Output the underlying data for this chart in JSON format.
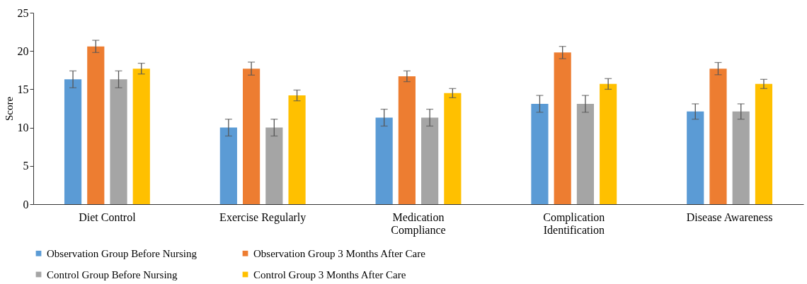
{
  "chart_data": {
    "type": "bar",
    "ylabel": "Score",
    "categories": [
      "Diet Control",
      "Exercise Regularly",
      "Medication Compliance",
      "Complication Identification",
      "Disease Awareness"
    ],
    "series": [
      {
        "name": "Observation Group Before Nursing",
        "color": "#5b9bd5",
        "values": [
          16.3,
          10.0,
          11.3,
          13.1,
          12.1
        ],
        "errors": [
          1.1,
          1.1,
          1.1,
          1.1,
          1.0
        ]
      },
      {
        "name": "Observation Group 3 Months After Care",
        "color": "#ed7d31",
        "values": [
          20.6,
          17.7,
          16.7,
          19.8,
          17.7
        ],
        "errors": [
          0.8,
          0.85,
          0.7,
          0.8,
          0.8
        ]
      },
      {
        "name": "Control Group Before Nursing",
        "color": "#a5a5a5",
        "values": [
          16.3,
          10.0,
          11.3,
          13.1,
          12.1
        ],
        "errors": [
          1.1,
          1.1,
          1.1,
          1.1,
          1.0
        ]
      },
      {
        "name": "Control Group 3 Months After Care",
        "color": "#ffc000",
        "values": [
          17.7,
          14.2,
          14.5,
          15.7,
          15.7
        ],
        "errors": [
          0.7,
          0.7,
          0.6,
          0.7,
          0.6
        ]
      }
    ],
    "ylim": [
      0,
      25
    ],
    "yticks": [
      0,
      5,
      10,
      15,
      20,
      25
    ],
    "grid": false,
    "legend": "bottom"
  }
}
